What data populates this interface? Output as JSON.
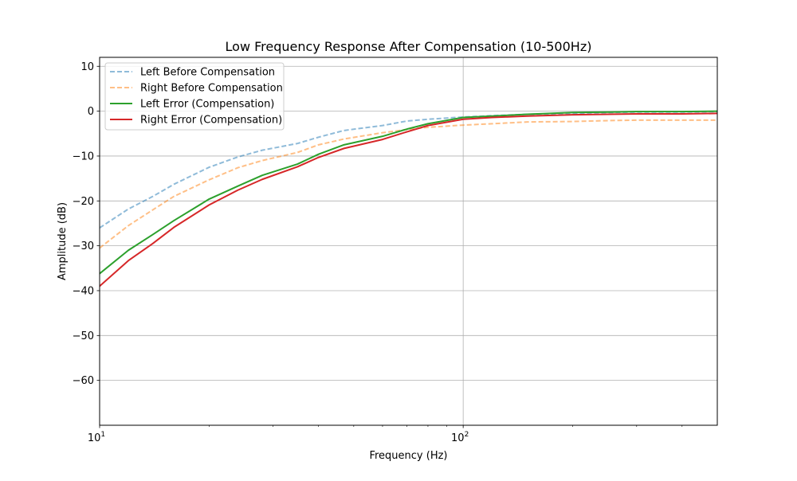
{
  "chart_data": {
    "type": "line",
    "title": "Low Frequency Response After Compensation (10-500Hz)",
    "xlabel": "Frequency (Hz)",
    "ylabel": "Amplitude (dB)",
    "xscale": "log",
    "xlim": [
      10,
      500
    ],
    "ylim": [
      -70,
      12
    ],
    "grid": true,
    "legend_position": "upper-left",
    "x_ticks": [
      {
        "value": 10,
        "base": "10",
        "exp": "1"
      },
      {
        "value": 100,
        "base": "10",
        "exp": "2"
      }
    ],
    "y_ticks": [
      {
        "value": 10,
        "label": "10"
      },
      {
        "value": 0,
        "label": "0"
      },
      {
        "value": -10,
        "label": "−10"
      },
      {
        "value": -20,
        "label": "−20"
      },
      {
        "value": -30,
        "label": "−30"
      },
      {
        "value": -40,
        "label": "−40"
      },
      {
        "value": -50,
        "label": "−50"
      },
      {
        "value": -60,
        "label": "−60"
      }
    ],
    "x": [
      10,
      12,
      14,
      16,
      20,
      24,
      28,
      35,
      40,
      47,
      60,
      70,
      80,
      100,
      120,
      150,
      200,
      250,
      300,
      400,
      500
    ],
    "series": [
      {
        "name": "Left Before Compensation",
        "color": "#1f77b4",
        "style": "dashed",
        "opacity": 0.5,
        "values": [
          -26,
          -21.8,
          -19,
          -16.3,
          -12.5,
          -10.2,
          -8.7,
          -7.2,
          -5.8,
          -4.3,
          -3.2,
          -2.2,
          -1.8,
          -1.3,
          -1.0,
          -0.7,
          -0.5,
          -0.3,
          -0.2,
          -0.2,
          -0.1
        ]
      },
      {
        "name": "Right Before Compensation",
        "color": "#ff7f0e",
        "style": "dashed",
        "opacity": 0.5,
        "values": [
          -30.5,
          -25.5,
          -22,
          -19,
          -15.3,
          -12.6,
          -11,
          -9.2,
          -7.5,
          -6.2,
          -4.8,
          -4.1,
          -3.6,
          -3.1,
          -2.8,
          -2.4,
          -2.3,
          -2.1,
          -2.0,
          -2.0,
          -2.0
        ]
      },
      {
        "name": "Left Error (Compensation)",
        "color": "#2ca02c",
        "style": "solid",
        "opacity": 1,
        "values": [
          -36.2,
          -31,
          -27.5,
          -24.4,
          -19.6,
          -16.7,
          -14.3,
          -11.8,
          -9.6,
          -7.5,
          -5.6,
          -4.0,
          -2.8,
          -1.4,
          -1.1,
          -0.7,
          -0.3,
          -0.2,
          -0.1,
          -0.1,
          0
        ]
      },
      {
        "name": "Right Error (Compensation)",
        "color": "#d62728",
        "style": "solid",
        "opacity": 1,
        "values": [
          -39,
          -33.3,
          -29.5,
          -25.9,
          -20.9,
          -17.6,
          -15.2,
          -12.4,
          -10.3,
          -8.3,
          -6.3,
          -4.6,
          -3.2,
          -1.8,
          -1.4,
          -1.1,
          -0.8,
          -0.7,
          -0.6,
          -0.6,
          -0.5
        ]
      }
    ]
  }
}
